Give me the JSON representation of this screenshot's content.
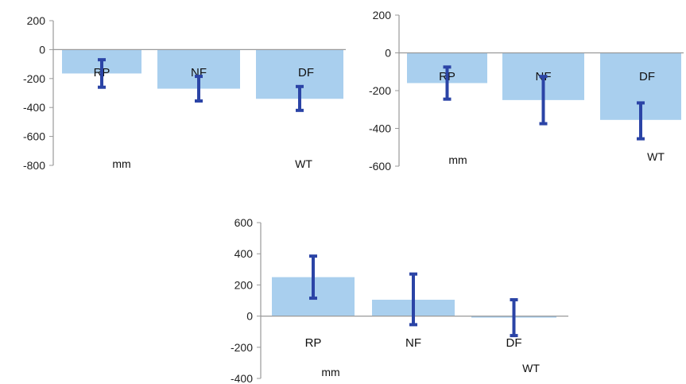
{
  "chart_data": [
    {
      "type": "bar",
      "categories": [
        "RP",
        "NF",
        "DF"
      ],
      "values": [
        -165,
        -270,
        -340
      ],
      "error_low": [
        -260,
        -355,
        -420
      ],
      "error_high": [
        -70,
        -185,
        -255
      ],
      "ylim": [
        -800,
        200
      ],
      "yticks": [
        "200",
        "0",
        "-200",
        "-400",
        "-600",
        "-800"
      ],
      "annotations": [
        "mm",
        "WT"
      ],
      "bar_color": "#a9cfee",
      "error_color": "#2b44a6"
    },
    {
      "type": "bar",
      "categories": [
        "RP",
        "NF",
        "DF"
      ],
      "values": [
        -160,
        -250,
        -355
      ],
      "error_low": [
        -245,
        -375,
        -455
      ],
      "error_high": [
        -75,
        -125,
        -265
      ],
      "ylim": [
        -600,
        200
      ],
      "yticks": [
        "200",
        "0",
        "-200",
        "-400",
        "-600"
      ],
      "annotations": [
        "mm",
        "WT"
      ],
      "bar_color": "#a9cfee",
      "error_color": "#2b44a6"
    },
    {
      "type": "bar",
      "categories": [
        "RP",
        "NF",
        "DF"
      ],
      "values": [
        250,
        105,
        -10
      ],
      "error_low": [
        115,
        -55,
        -125
      ],
      "error_high": [
        385,
        270,
        105
      ],
      "ylim": [
        -400,
        600
      ],
      "yticks": [
        "600",
        "400",
        "200",
        "0",
        "-200",
        "-400"
      ],
      "annotations": [
        "mm",
        "WT"
      ],
      "bar_color": "#a9cfee",
      "error_color": "#2b44a6"
    }
  ]
}
